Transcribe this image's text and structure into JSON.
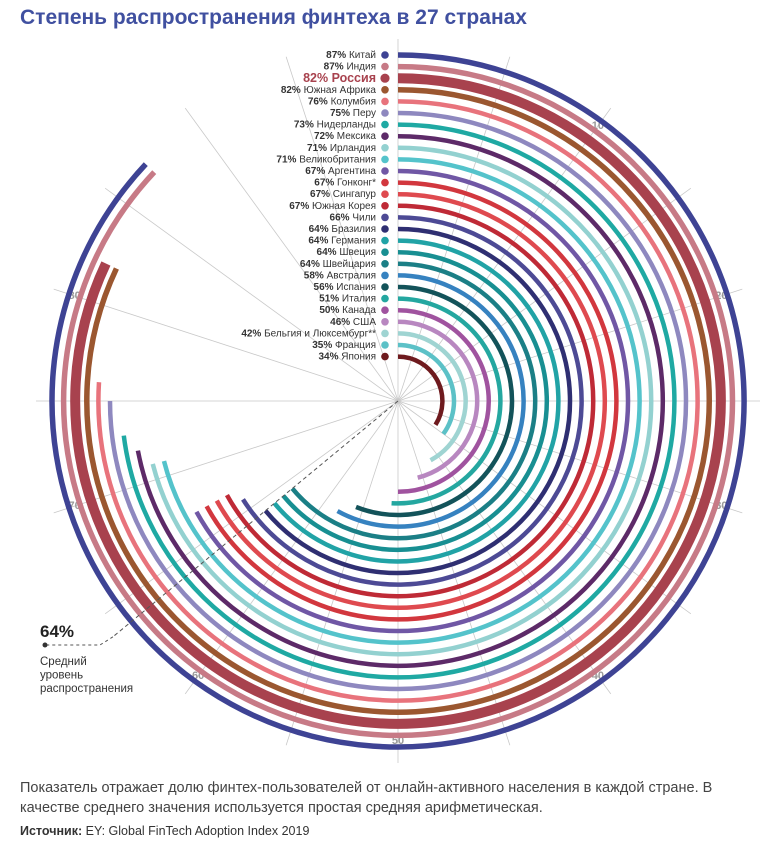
{
  "chart_data": {
    "type": "radial-bar",
    "title": "Степень распространения финтеха в 27 странах",
    "axis_max": 100,
    "axis_ticks": [
      10,
      20,
      30,
      40,
      50,
      60,
      70,
      80
    ],
    "average": {
      "value": 64,
      "value_label": "64%",
      "label_lines": [
        "Средний",
        "уровень",
        "распространения"
      ]
    },
    "series": [
      {
        "country": "Китай",
        "value": 87,
        "value_label": "87%",
        "color": "#3e4394"
      },
      {
        "country": "Индия",
        "value": 87,
        "value_label": "87%",
        "color": "#c77a86"
      },
      {
        "country": "Россия",
        "value": 82,
        "value_label": "82%",
        "color": "#a8424e",
        "highlight": true
      },
      {
        "country": "Южная Африка",
        "value": 82,
        "value_label": "82%",
        "color": "#9b5730"
      },
      {
        "country": "Колумбия",
        "value": 76,
        "value_label": "76%",
        "color": "#e8737c"
      },
      {
        "country": "Перу",
        "value": 75,
        "value_label": "75%",
        "color": "#8e88bf"
      },
      {
        "country": "Нидерланды",
        "value": 73,
        "value_label": "73%",
        "color": "#1fa9a3"
      },
      {
        "country": "Мексика",
        "value": 72,
        "value_label": "72%",
        "color": "#5d2a68"
      },
      {
        "country": "Ирландия",
        "value": 71,
        "value_label": "71%",
        "color": "#93d1d0"
      },
      {
        "country": "Великобритания",
        "value": 71,
        "value_label": "71%",
        "color": "#54c3cb"
      },
      {
        "country": "Аргентина",
        "value": 67,
        "value_label": "67%",
        "color": "#7057a5"
      },
      {
        "country": "Гонконг*",
        "value": 67,
        "value_label": "67%",
        "color": "#d2373e"
      },
      {
        "country": "Сингапур",
        "value": 67,
        "value_label": "67%",
        "color": "#df4a4f"
      },
      {
        "country": "Южная Корея",
        "value": 67,
        "value_label": "67%",
        "color": "#bf2a36"
      },
      {
        "country": "Чили",
        "value": 66,
        "value_label": "66%",
        "color": "#4d4a95"
      },
      {
        "country": "Бразилия",
        "value": 64,
        "value_label": "64%",
        "color": "#2f2f72"
      },
      {
        "country": "Германия",
        "value": 64,
        "value_label": "64%",
        "color": "#21a3a6"
      },
      {
        "country": "Швеция",
        "value": 64,
        "value_label": "64%",
        "color": "#188f92"
      },
      {
        "country": "Швейцария",
        "value": 64,
        "value_label": "64%",
        "color": "#1b7f86"
      },
      {
        "country": "Австралия",
        "value": 58,
        "value_label": "58%",
        "color": "#3682c0"
      },
      {
        "country": "Испания",
        "value": 56,
        "value_label": "56%",
        "color": "#13535a"
      },
      {
        "country": "Италия",
        "value": 51,
        "value_label": "51%",
        "color": "#24a7a0"
      },
      {
        "country": "Канада",
        "value": 50,
        "value_label": "50%",
        "color": "#a0539f"
      },
      {
        "country": "США",
        "value": 46,
        "value_label": "46%",
        "color": "#b887c0"
      },
      {
        "country": "Бельгия и Люксембург**",
        "value": 42,
        "value_label": "42%",
        "color": "#9fd4d2"
      },
      {
        "country": "Франция",
        "value": 35,
        "value_label": "35%",
        "color": "#5cc1c7"
      },
      {
        "country": "Япония",
        "value": 34,
        "value_label": "34%",
        "color": "#6e1a1e"
      }
    ]
  },
  "footnote": "Показатель отражает долю финтех-пользователей от онлайн-активного населения в каждой стране. В качестве среднего значения используется простая средняя арифметическая.",
  "source": {
    "label": "Источник:",
    "text": "EY: Global FinTech Adoption Index 2019"
  }
}
